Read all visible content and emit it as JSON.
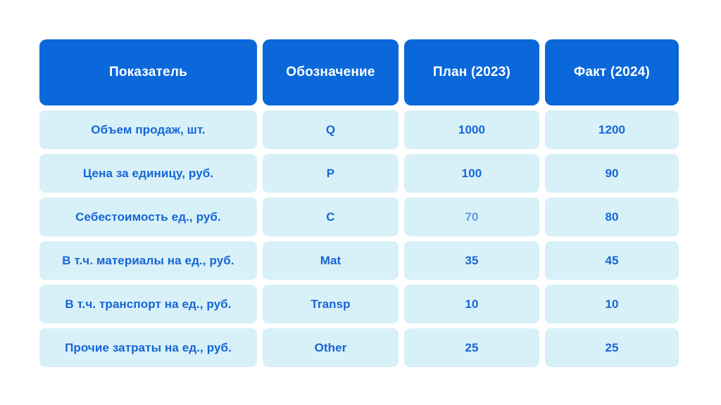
{
  "chart_data": {
    "type": "table",
    "columns": [
      "Показатель",
      "Обозначение",
      "План (2023)",
      "Факт (2024)"
    ],
    "rows": [
      [
        "Объем продаж, шт.",
        "Q",
        "1000",
        "1200"
      ],
      [
        "Цена за единицу, руб.",
        "P",
        "100",
        "90"
      ],
      [
        "Себестоимость ед., руб.",
        "C",
        "70",
        "80"
      ],
      [
        "В т.ч. материалы на ед., руб.",
        "Mat",
        "35",
        "45"
      ],
      [
        "В т.ч. транспорт на ед., руб.",
        "Transp",
        "10",
        "10"
      ],
      [
        "Прочие затраты на ед., руб.",
        "Other",
        "25",
        "25"
      ]
    ],
    "notes": "Value 70 (row 'Себестоимость ед., руб.', column 'План (2023)') is shown in a lighter blue than other values"
  },
  "colors": {
    "page_bg": "#ffffff",
    "header_bg": "#0a68da",
    "header_text": "#ffffff",
    "cell_bg": "#d8f0f8",
    "cell_text": "#1566d7",
    "muted_cell_text": "#5f9de2"
  }
}
